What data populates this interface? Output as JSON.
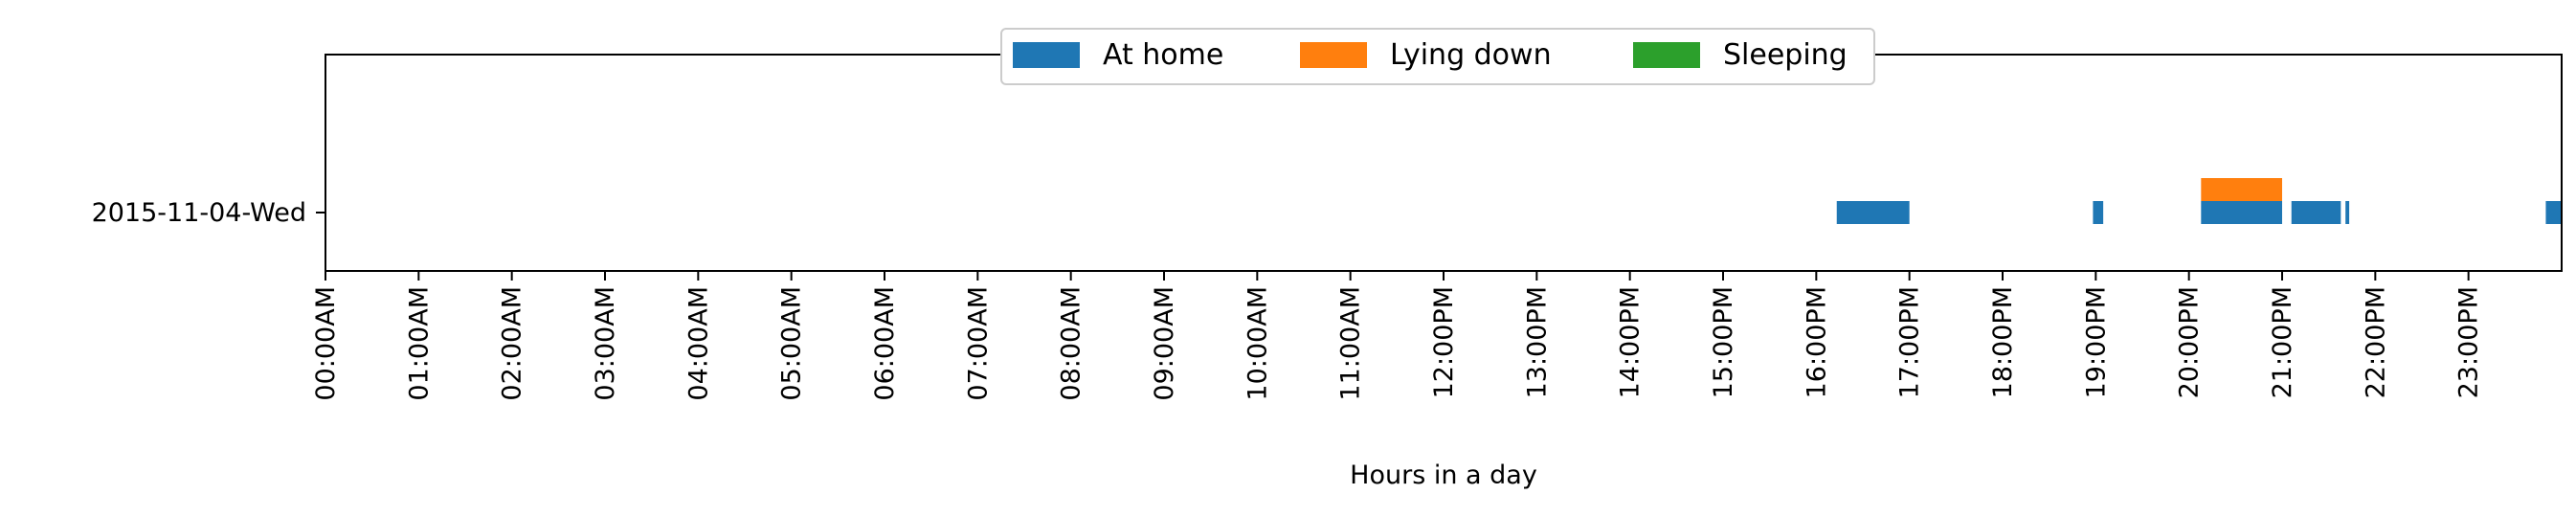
{
  "chart_data": {
    "type": "bar",
    "orientation": "horizontal-timeline",
    "title": "",
    "xlabel": "Hours in a day",
    "ylabel": "",
    "categories": [
      "2015-11-04-Wed"
    ],
    "xlim": [
      0,
      24
    ],
    "x_ticks": [
      {
        "value": 0,
        "label": "00:00AM"
      },
      {
        "value": 1,
        "label": "01:00AM"
      },
      {
        "value": 2,
        "label": "02:00AM"
      },
      {
        "value": 3,
        "label": "03:00AM"
      },
      {
        "value": 4,
        "label": "04:00AM"
      },
      {
        "value": 5,
        "label": "05:00AM"
      },
      {
        "value": 6,
        "label": "06:00AM"
      },
      {
        "value": 7,
        "label": "07:00AM"
      },
      {
        "value": 8,
        "label": "08:00AM"
      },
      {
        "value": 9,
        "label": "09:00AM"
      },
      {
        "value": 10,
        "label": "10:00AM"
      },
      {
        "value": 11,
        "label": "11:00AM"
      },
      {
        "value": 12,
        "label": "12:00PM"
      },
      {
        "value": 13,
        "label": "13:00PM"
      },
      {
        "value": 14,
        "label": "14:00PM"
      },
      {
        "value": 15,
        "label": "15:00PM"
      },
      {
        "value": 16,
        "label": "16:00PM"
      },
      {
        "value": 17,
        "label": "17:00PM"
      },
      {
        "value": 18,
        "label": "18:00PM"
      },
      {
        "value": 19,
        "label": "19:00PM"
      },
      {
        "value": 20,
        "label": "20:00PM"
      },
      {
        "value": 21,
        "label": "21:00PM"
      },
      {
        "value": 22,
        "label": "22:00PM"
      },
      {
        "value": 23,
        "label": "23:00PM"
      }
    ],
    "legend_position": "top-center",
    "grid": false,
    "series": [
      {
        "name": "At home",
        "color": "#1f77b4",
        "intervals": [
          {
            "day": "2015-11-04-Wed",
            "start": 16.22,
            "end": 17.0
          },
          {
            "day": "2015-11-04-Wed",
            "start": 18.97,
            "end": 19.08
          },
          {
            "day": "2015-11-04-Wed",
            "start": 20.13,
            "end": 21.0
          },
          {
            "day": "2015-11-04-Wed",
            "start": 21.1,
            "end": 21.63
          },
          {
            "day": "2015-11-04-Wed",
            "start": 21.68,
            "end": 21.72
          },
          {
            "day": "2015-11-04-Wed",
            "start": 23.83,
            "end": 24.0
          }
        ]
      },
      {
        "name": "Lying down",
        "color": "#ff7f0e",
        "intervals": [
          {
            "day": "2015-11-04-Wed",
            "start": 20.13,
            "end": 21.0
          }
        ]
      },
      {
        "name": "Sleeping",
        "color": "#2ca02c",
        "intervals": []
      }
    ]
  }
}
